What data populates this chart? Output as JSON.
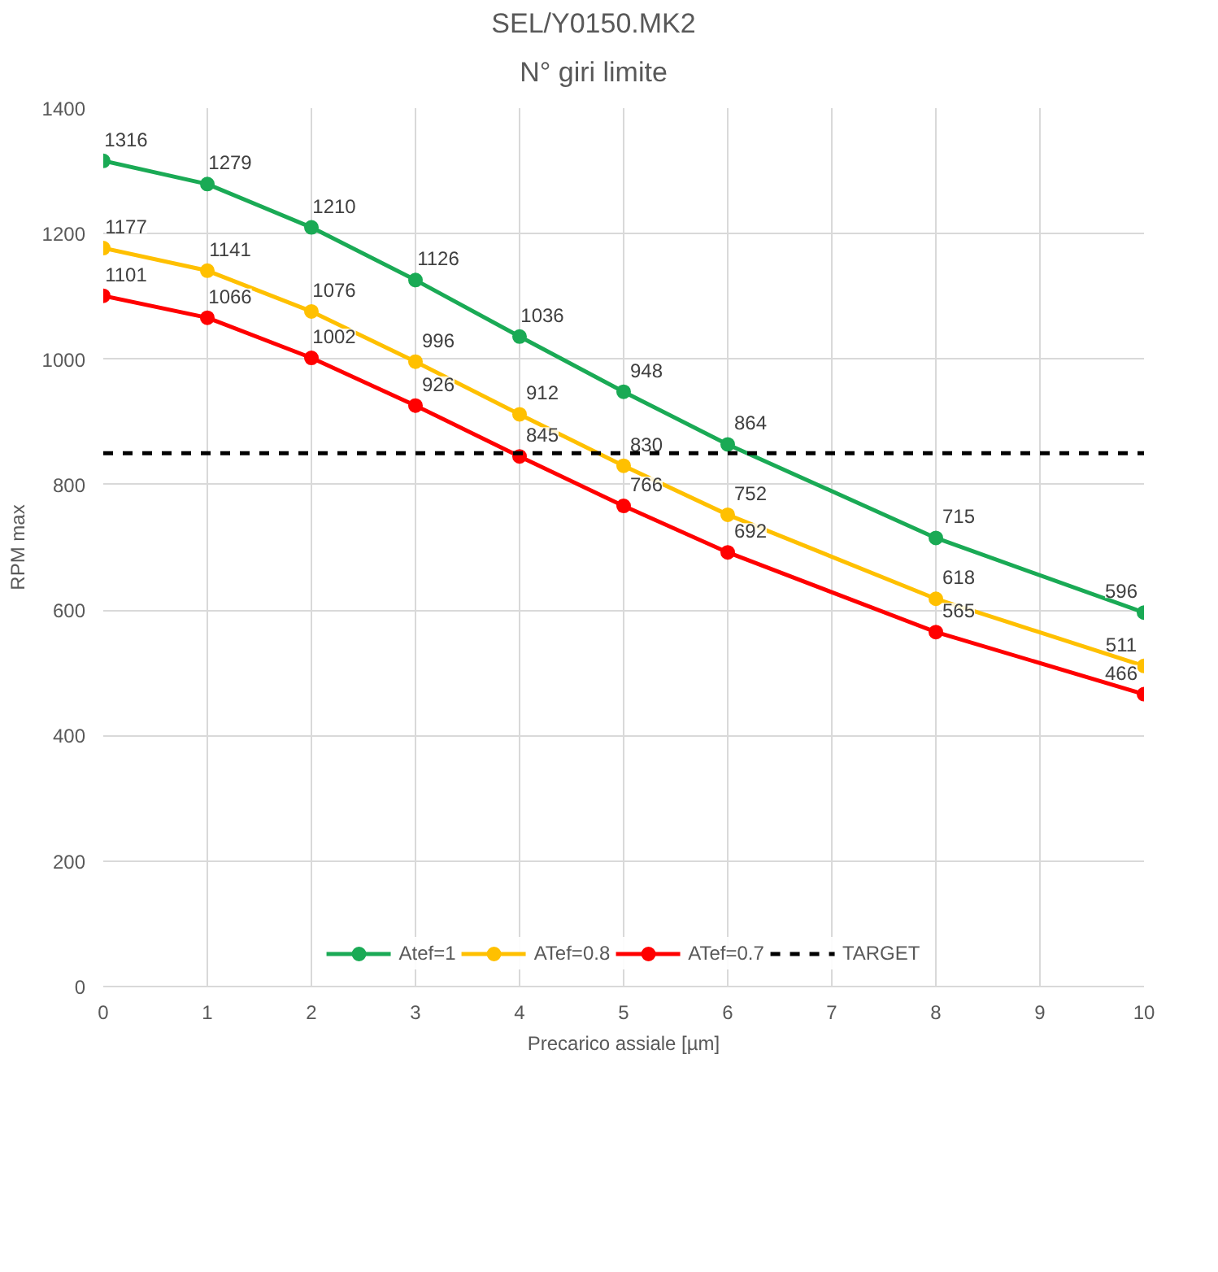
{
  "chart_data": {
    "type": "line",
    "title": "SEL/Y0150.MK2\nN° giri limite",
    "xlabel": "Precarico assiale [µm]",
    "ylabel": "RPM max",
    "x": [
      0,
      1,
      2,
      3,
      4,
      5,
      6,
      8,
      10
    ],
    "series": [
      {
        "name": "Atef=1",
        "color": "#1aaa55",
        "values": [
          1316,
          1279,
          1210,
          1126,
          1036,
          948,
          864,
          715,
          596
        ]
      },
      {
        "name": "ATef=0.8",
        "color": "#ffc000",
        "values": [
          1177,
          1141,
          1076,
          996,
          912,
          830,
          752,
          618,
          511
        ]
      },
      {
        "name": "ATef=0.7",
        "color": "#ff0000",
        "values": [
          1101,
          1066,
          1002,
          926,
          845,
          766,
          692,
          565,
          466
        ]
      }
    ],
    "ref_lines": [
      {
        "axis": "y",
        "value": 850,
        "label": "TARGET",
        "color": "#000000",
        "line_style": "dashed"
      }
    ],
    "xlim": [
      0,
      10
    ],
    "xticks": [
      0,
      1,
      2,
      3,
      4,
      5,
      6,
      7,
      8,
      9,
      10
    ],
    "ylim": [
      0,
      1400
    ],
    "yticks": [
      0,
      200,
      400,
      600,
      800,
      1000,
      1200,
      1400
    ],
    "grid": true,
    "legend": "bottom",
    "marker": "circle",
    "line_style": "solid",
    "data_labels": true
  }
}
